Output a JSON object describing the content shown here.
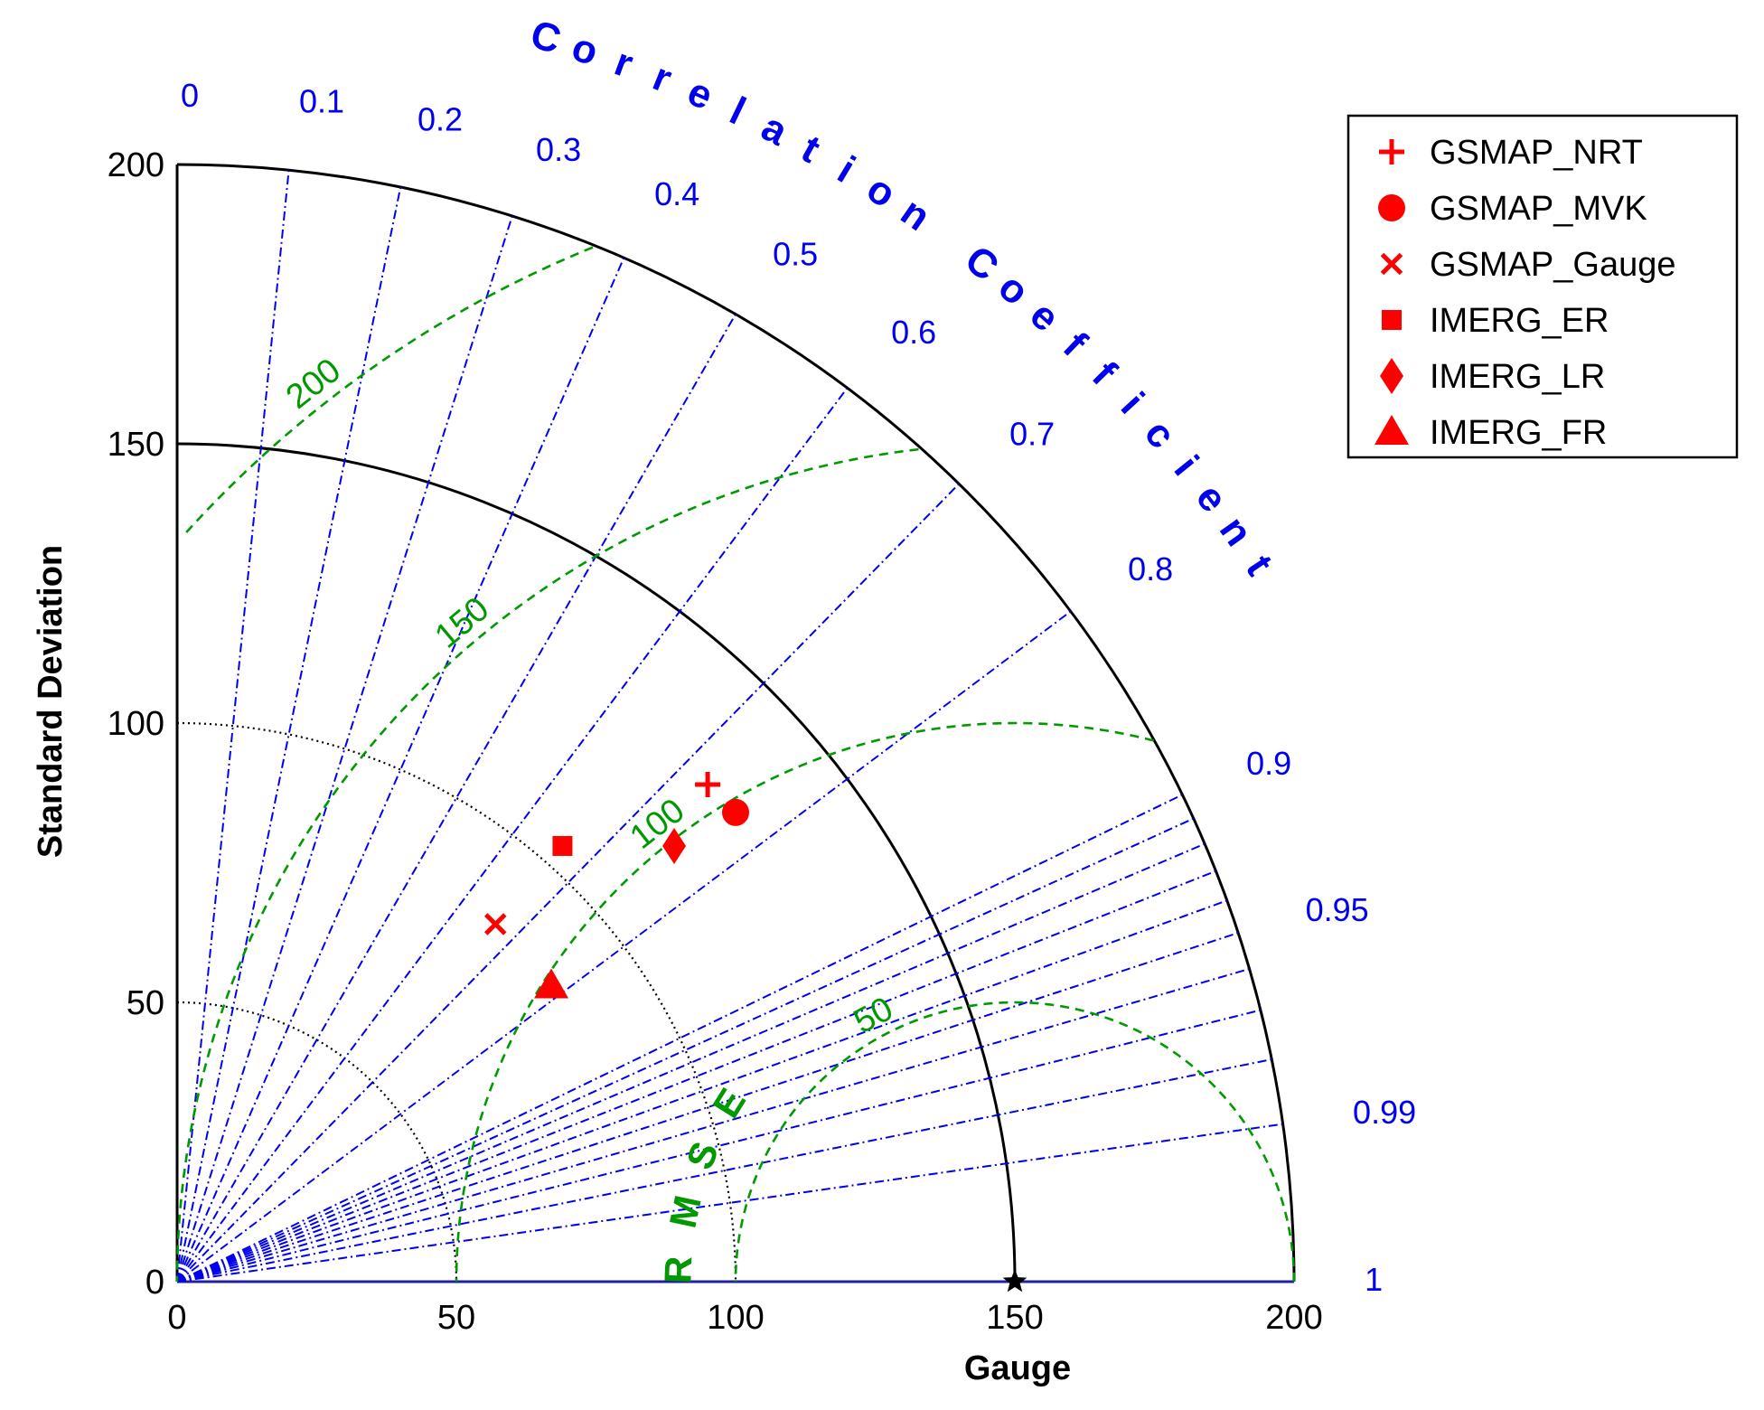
{
  "chart_data": {
    "type": "taylor",
    "ylabel": "Standard Deviation",
    "xlabel": "Gauge",
    "corr_title": "Correlation Coefficient",
    "rmse_title": "RMSE",
    "std_ticks": [
      0,
      50,
      100,
      150,
      200
    ],
    "std_tick_labels": [
      "0",
      "50",
      "100",
      "150",
      "200"
    ],
    "std_max": 200,
    "reference_std": 150,
    "corr_ticks": [
      0,
      0.1,
      0.2,
      0.3,
      0.4,
      0.5,
      0.6,
      0.7,
      0.8,
      0.9,
      0.95,
      0.99,
      1
    ],
    "corr_tick_labels": [
      "0",
      "0.1",
      "0.2",
      "0.3",
      "0.4",
      "0.5",
      "0.6",
      "0.7",
      "0.8",
      "0.9",
      "0.95",
      "0.99",
      "1"
    ],
    "rmse_ticks": [
      50,
      100,
      150,
      200
    ],
    "rmse_tick_labels": [
      "50",
      "100",
      "150",
      "200"
    ],
    "dotted_std_arcs": [
      50,
      100
    ],
    "points": [
      {
        "name": "GSMAP_NRT",
        "marker": "plus",
        "x": 95,
        "y": 89
      },
      {
        "name": "GSMAP_MVK",
        "marker": "circle",
        "x": 100,
        "y": 84
      },
      {
        "name": "GSMAP_Gauge",
        "marker": "x",
        "x": 57,
        "y": 64
      },
      {
        "name": "IMERG_ER",
        "marker": "square",
        "x": 69,
        "y": 78
      },
      {
        "name": "IMERG_LR",
        "marker": "diamond",
        "x": 89,
        "y": 78
      },
      {
        "name": "IMERG_FR",
        "marker": "triangle",
        "x": 67,
        "y": 53
      }
    ],
    "legend_position": "top-right",
    "colors": {
      "markers": "#ff0000",
      "correlation": "#0000ee",
      "rmse": "#009900",
      "std": "#000000"
    }
  }
}
